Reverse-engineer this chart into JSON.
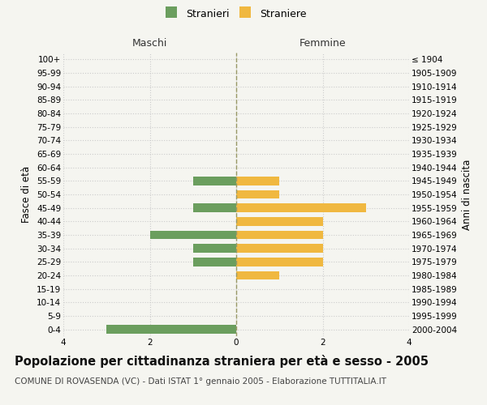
{
  "age_groups": [
    "0-4",
    "5-9",
    "10-14",
    "15-19",
    "20-24",
    "25-29",
    "30-34",
    "35-39",
    "40-44",
    "45-49",
    "50-54",
    "55-59",
    "60-64",
    "65-69",
    "70-74",
    "75-79",
    "80-84",
    "85-89",
    "90-94",
    "95-99",
    "100+"
  ],
  "birth_years": [
    "2000-2004",
    "1995-1999",
    "1990-1994",
    "1985-1989",
    "1980-1984",
    "1975-1979",
    "1970-1974",
    "1965-1969",
    "1960-1964",
    "1955-1959",
    "1950-1954",
    "1945-1949",
    "1940-1944",
    "1935-1939",
    "1930-1934",
    "1925-1929",
    "1920-1924",
    "1915-1919",
    "1910-1914",
    "1905-1909",
    "≤ 1904"
  ],
  "males": [
    3,
    0,
    0,
    0,
    0,
    1,
    1,
    2,
    0,
    1,
    0,
    1,
    0,
    0,
    0,
    0,
    0,
    0,
    0,
    0,
    0
  ],
  "females": [
    0,
    0,
    0,
    0,
    1,
    2,
    2,
    2,
    2,
    3,
    1,
    1,
    0,
    0,
    0,
    0,
    0,
    0,
    0,
    0,
    0
  ],
  "male_color": "#6b9e5e",
  "female_color": "#f0b840",
  "male_label": "Stranieri",
  "female_label": "Straniere",
  "xlim": 4,
  "title": "Popolazione per cittadinanza straniera per età e sesso - 2005",
  "subtitle": "COMUNE DI ROVASENDA (VC) - Dati ISTAT 1° gennaio 2005 - Elaborazione TUTTITALIA.IT",
  "ylabel_left": "Fasce di età",
  "ylabel_right": "Anni di nascita",
  "label_maschi": "Maschi",
  "label_femmine": "Femmine",
  "bg_color": "#f5f5f0",
  "grid_color": "#cccccc",
  "title_fontsize": 10.5,
  "subtitle_fontsize": 7.5,
  "tick_fontsize": 7.5,
  "label_fontsize": 8.5
}
